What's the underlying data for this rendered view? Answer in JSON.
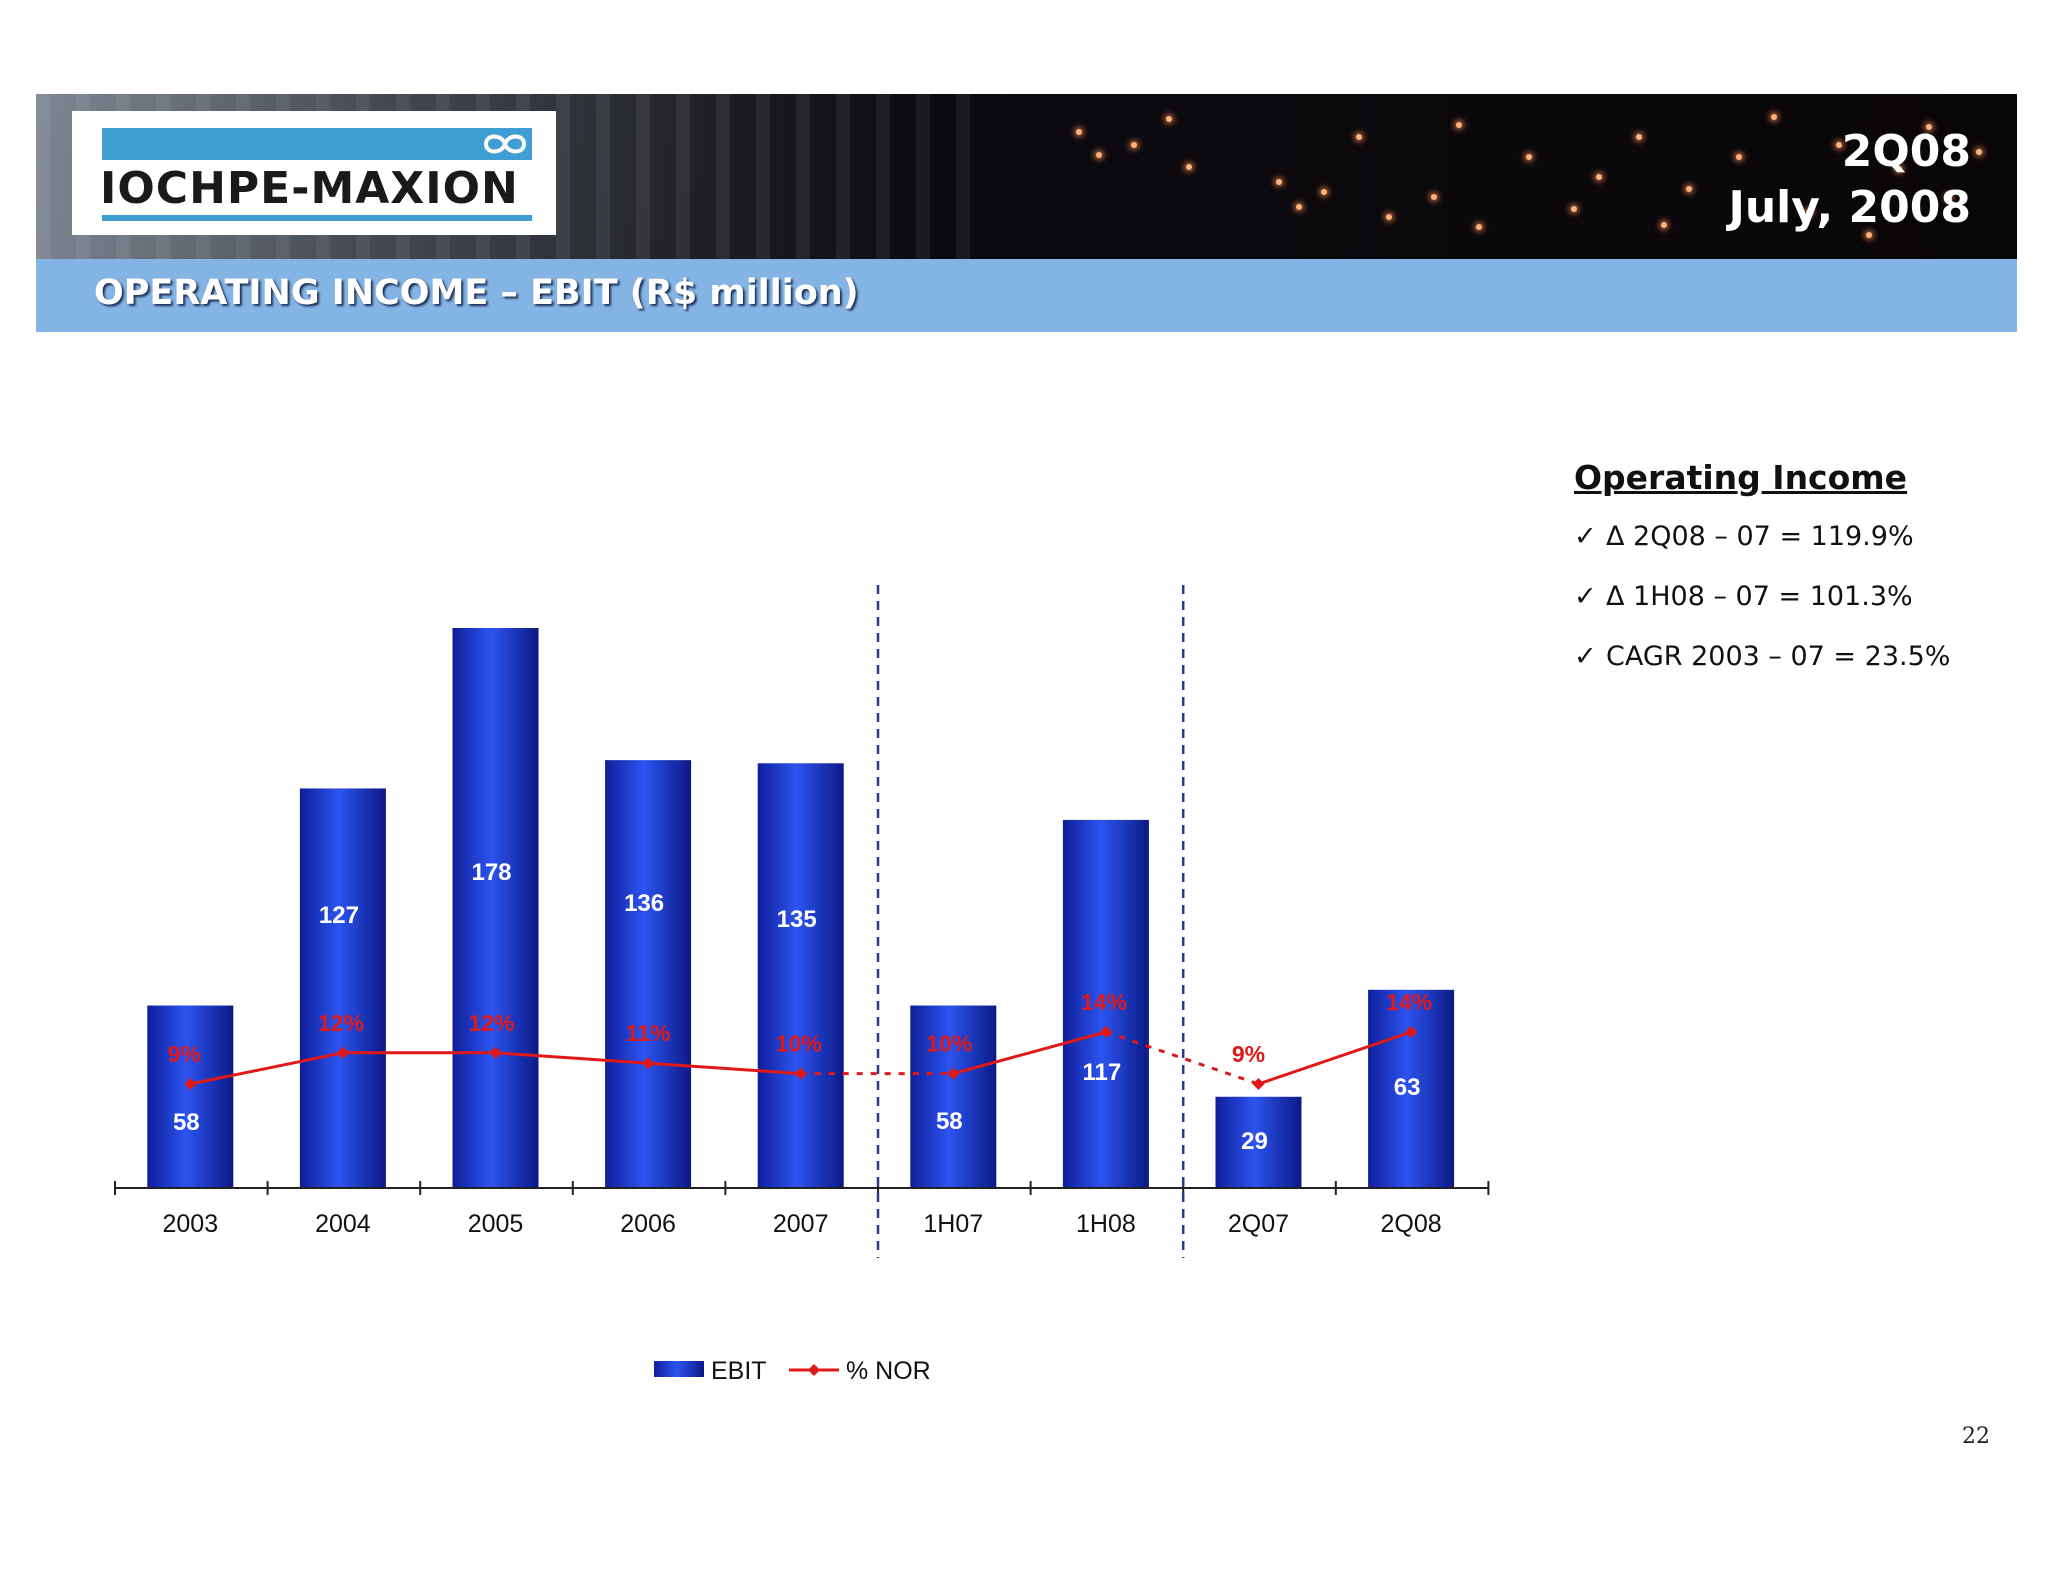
{
  "header": {
    "logo_text": "IOCHPE-MAXION",
    "period_line1": "2Q08",
    "period_line2": "July, 2008"
  },
  "title": "OPERATING INCOME – EBIT (R$ million)",
  "sidebar": {
    "heading": "Operating Income",
    "items": [
      {
        "label": "Δ 2Q08 – 07 = 119.9%"
      },
      {
        "label": "Δ 1H08 – 07 = 101.3%"
      },
      {
        "label": "CAGR 2003 – 07 = 23.5%"
      }
    ]
  },
  "page_number": "22",
  "colors": {
    "bar": "#1f3fd0",
    "line": "#e01818",
    "divider": "#2b3a8f",
    "title_bar": "#84b4e4"
  },
  "chart_data": {
    "type": "bar",
    "categories": [
      "2003",
      "2004",
      "2005",
      "2006",
      "2007",
      "1H07",
      "1H08",
      "2Q07",
      "2Q08"
    ],
    "series": [
      {
        "name": "EBIT",
        "type": "bar",
        "values": [
          58,
          127,
          178,
          136,
          135,
          58,
          117,
          29,
          63
        ],
        "labels": [
          "58",
          "127",
          "178",
          "136",
          "135",
          "58",
          "117",
          "29",
          "63"
        ]
      },
      {
        "name": "% NOR",
        "type": "line",
        "values": [
          9,
          12,
          12,
          11,
          10,
          10,
          14,
          9,
          14
        ],
        "labels": [
          "9%",
          "12%",
          "12%",
          "11%",
          "10%",
          "10%",
          "14%",
          "9%",
          "14%"
        ]
      }
    ],
    "dashed_segments": [
      [
        4,
        5
      ],
      [
        6,
        7
      ]
    ],
    "group_dividers_after": [
      4,
      6
    ],
    "legend_position": "bottom",
    "grid": false
  }
}
